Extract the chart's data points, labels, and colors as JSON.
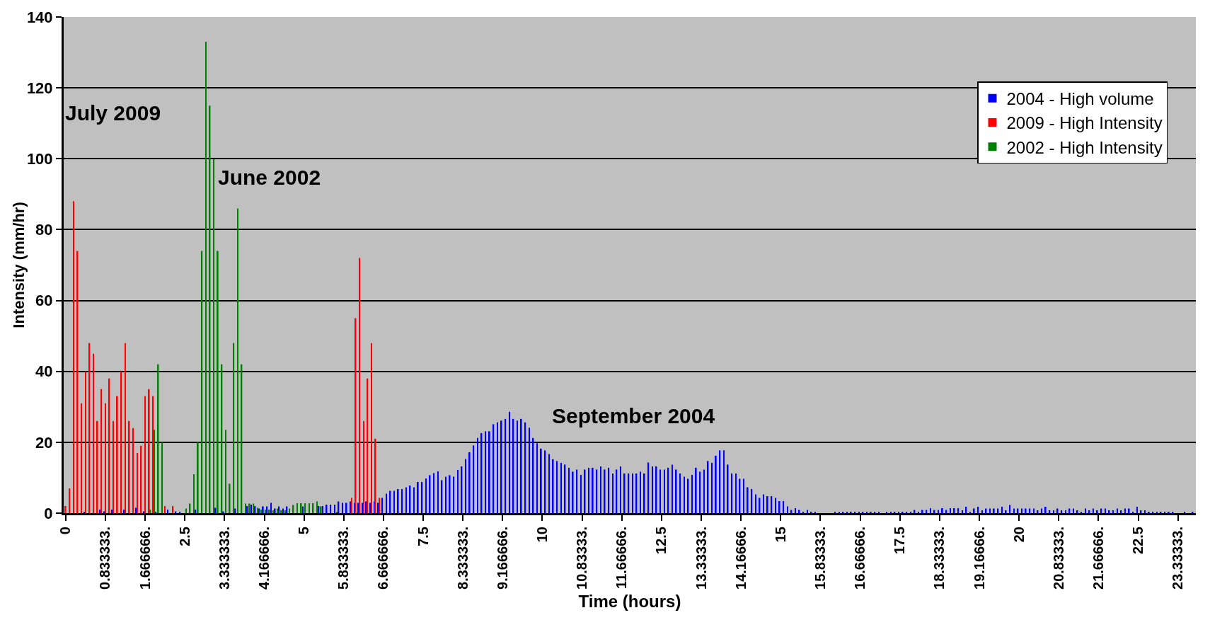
{
  "chart_data": {
    "type": "bar",
    "xlabel": "Time (hours)",
    "ylabel": "Intensity (mm/hr)",
    "categories": [
      "0",
      null,
      null,
      null,
      null,
      null,
      null,
      null,
      null,
      null,
      "0.833333.",
      null,
      null,
      null,
      null,
      null,
      null,
      null,
      null,
      null,
      "1.666666.",
      null,
      null,
      null,
      null,
      null,
      null,
      null,
      null,
      null,
      "2.5",
      null,
      null,
      null,
      null,
      null,
      null,
      null,
      null,
      null,
      "3.333333.",
      null,
      null,
      null,
      null,
      null,
      null,
      null,
      null,
      null,
      "4.166666.",
      null,
      null,
      null,
      null,
      null,
      null,
      null,
      null,
      null,
      "5",
      null,
      null,
      null,
      null,
      null,
      null,
      null,
      null,
      null,
      "5.833333.",
      null,
      null,
      null,
      null,
      null,
      null,
      null,
      null,
      null,
      "6.666666.",
      null,
      null,
      null,
      null,
      null,
      null,
      null,
      null,
      null,
      "7.5",
      null,
      null,
      null,
      null,
      null,
      null,
      null,
      null,
      null,
      "8.333333.",
      null,
      null,
      null,
      null,
      null,
      null,
      null,
      null,
      null,
      "9.166666.",
      null,
      null,
      null,
      null,
      null,
      null,
      null,
      null,
      null,
      "10",
      null,
      null,
      null,
      null,
      null,
      null,
      null,
      null,
      null,
      "10.83333.",
      null,
      null,
      null,
      null,
      null,
      null,
      null,
      null,
      null,
      "11.66666.",
      null,
      null,
      null,
      null,
      null,
      null,
      null,
      null,
      null,
      "12.5",
      null,
      null,
      null,
      null,
      null,
      null,
      null,
      null,
      null,
      "13.33333.",
      null,
      null,
      null,
      null,
      null,
      null,
      null,
      null,
      null,
      "14.16666.",
      null,
      null,
      null,
      null,
      null,
      null,
      null,
      null,
      null,
      "15",
      null,
      null,
      null,
      null,
      null,
      null,
      null,
      null,
      null,
      "15.83333.",
      null,
      null,
      null,
      null,
      null,
      null,
      null,
      null,
      null,
      "16.66666.",
      null,
      null,
      null,
      null,
      null,
      null,
      null,
      null,
      null,
      "17.5",
      null,
      null,
      null,
      null,
      null,
      null,
      null,
      null,
      null,
      "18.33333.",
      null,
      null,
      null,
      null,
      null,
      null,
      null,
      null,
      null,
      "19.16666.",
      null,
      null,
      null,
      null,
      null,
      null,
      null,
      null,
      null,
      "20",
      null,
      null,
      null,
      null,
      null,
      null,
      null,
      null,
      null,
      "20.83333.",
      null,
      null,
      null,
      null,
      null,
      null,
      null,
      null,
      null,
      "21.66666.",
      null,
      null,
      null,
      null,
      null,
      null,
      null,
      null,
      null,
      "22.5",
      null,
      null,
      null,
      null,
      null,
      null,
      null,
      null,
      null,
      "23.33333.",
      null,
      null,
      null,
      null
    ],
    "series": [
      {
        "name": "2004 - High volume",
        "color": "#0000ff",
        "values": [
          null,
          null,
          null,
          null,
          null,
          0.3,
          null,
          null,
          null,
          1,
          0.5,
          null,
          1,
          null,
          null,
          1,
          null,
          null,
          1.5,
          null,
          0.5,
          null,
          null,
          0.3,
          null,
          null,
          1,
          null,
          0.5,
          0.3,
          null,
          null,
          null,
          1,
          null,
          null,
          null,
          null,
          1.5,
          null,
          0.5,
          null,
          null,
          1.3,
          null,
          null,
          2,
          2.4,
          2,
          1.3,
          1.9,
          1.9,
          2.9,
          1.3,
          1.9,
          1.3,
          1.9,
          null,
          null,
          null,
          1.9,
          null,
          null,
          null,
          2,
          2,
          2.4,
          2.4,
          2.4,
          3.3,
          2.9,
          2.9,
          3.3,
          2.9,
          2.9,
          2.9,
          3.3,
          2.9,
          3.3,
          2.9,
          4.3,
          5.5,
          6.3,
          6.3,
          6.8,
          6.8,
          7.3,
          7.8,
          7.3,
          8.8,
          8.8,
          9.8,
          10.7,
          11.3,
          11.8,
          9.3,
          10.3,
          10.7,
          10.3,
          12.2,
          13.2,
          15.3,
          17.2,
          19.1,
          21.2,
          22.6,
          23.1,
          23.1,
          25.1,
          25.6,
          26.1,
          26.6,
          28.6,
          26.6,
          26.1,
          26.6,
          25.6,
          24.1,
          21.2,
          19.7,
          18.2,
          17.7,
          16.7,
          15.2,
          14.7,
          14.2,
          13.7,
          12.8,
          11.7,
          12.3,
          10.8,
          12.3,
          12.8,
          12.8,
          12.3,
          13.2,
          12.3,
          12.8,
          11.2,
          12.3,
          13.2,
          11.2,
          11.2,
          11.2,
          11.2,
          11.7,
          11.2,
          14.3,
          13.2,
          13.2,
          12.3,
          12.3,
          12.8,
          13.7,
          12.3,
          11.2,
          10.3,
          9.7,
          10.8,
          12.8,
          11.7,
          12.3,
          14.7,
          14.2,
          16.2,
          17.7,
          17.7,
          13.7,
          11.2,
          11.2,
          9.7,
          9.7,
          7.3,
          6.8,
          5.3,
          4.3,
          5.3,
          4.8,
          4.8,
          4.3,
          3.4,
          3.4,
          1.9,
          0.9,
          1.4,
          0.9,
          0.4,
          0.9,
          0.4,
          0.4,
          null,
          null,
          null,
          null,
          0.4,
          0.4,
          0.4,
          0.4,
          0.4,
          0.4,
          0.4,
          0.4,
          0.4,
          0.4,
          0.4,
          0.4,
          null,
          0.4,
          0.4,
          0.4,
          0.4,
          0.4,
          0.4,
          0.4,
          0.9,
          0.4,
          0.9,
          0.9,
          1.4,
          0.9,
          0.9,
          1.4,
          0.9,
          1.4,
          1.4,
          1.4,
          0.8,
          1.8,
          0.3,
          1.3,
          1.8,
          0.8,
          1.3,
          1.3,
          1.3,
          1.3,
          1.8,
          0.8,
          2.3,
          1.3,
          1.3,
          1.3,
          1.3,
          1.3,
          1.3,
          0.8,
          1.3,
          1.8,
          0.8,
          0.8,
          1.3,
          0.8,
          0.8,
          1.3,
          1.3,
          0.8,
          0.3,
          1.3,
          0.8,
          1.3,
          0.8,
          1.3,
          1.3,
          0.8,
          0.8,
          1.3,
          0.8,
          1.3,
          1.3,
          0.3,
          1.8,
          0.8,
          0.8,
          0.3,
          0.3,
          0.3,
          0.3,
          0.3,
          0.3,
          0.3,
          null,
          null,
          0.3,
          null,
          0.3
        ]
      },
      {
        "name": "2009 - High Intensity",
        "color": "#ff0000",
        "values": [
          2,
          7,
          88,
          74,
          31,
          40,
          48,
          45,
          26,
          35,
          31,
          38,
          26,
          33,
          40,
          48,
          26,
          24,
          17,
          19,
          33,
          35,
          33,
          null,
          null,
          2,
          null,
          2,
          null,
          null,
          null,
          null,
          null,
          null,
          null,
          null,
          null,
          null,
          null,
          null,
          null,
          null,
          null,
          null,
          null,
          null,
          null,
          null,
          null,
          null,
          null,
          null,
          null,
          null,
          null,
          null,
          null,
          null,
          null,
          null,
          null,
          null,
          null,
          null,
          null,
          null,
          null,
          null,
          null,
          null,
          null,
          null,
          4.3,
          55,
          72,
          26,
          38,
          48,
          21,
          4.3,
          null,
          null,
          null,
          null,
          null,
          null,
          null,
          null,
          null,
          null,
          null,
          null,
          null,
          null,
          null,
          null,
          null,
          null,
          null,
          null,
          null,
          null,
          null,
          null,
          null,
          null,
          null,
          null,
          null,
          null,
          null,
          null,
          null,
          null,
          null,
          null,
          null,
          null,
          null,
          null,
          null,
          null,
          null,
          null,
          null,
          null,
          null,
          null,
          null,
          null,
          null,
          null,
          null,
          null,
          null,
          null,
          null,
          null,
          null,
          null,
          null,
          null,
          null,
          null,
          null,
          null,
          null,
          null,
          null,
          null,
          null,
          null,
          null,
          null,
          null,
          null,
          null,
          null,
          null,
          null,
          null,
          null,
          null,
          null,
          null,
          null,
          null,
          null,
          null,
          null,
          null,
          null,
          null,
          null,
          null,
          null,
          null,
          null,
          null,
          null,
          null,
          null,
          null,
          null,
          null,
          null,
          null,
          null,
          null,
          null,
          null,
          null,
          null,
          null,
          null,
          null,
          null,
          null,
          null,
          null,
          null,
          null,
          null,
          null,
          null,
          null,
          null,
          null,
          null,
          null,
          null,
          null,
          null,
          null,
          null,
          null,
          null,
          null,
          null,
          null,
          null,
          null,
          null,
          null,
          null,
          null,
          null,
          null,
          null,
          null,
          null,
          null,
          null,
          null,
          null,
          null,
          null,
          null,
          null,
          null,
          null,
          null,
          null,
          null,
          null,
          null,
          null,
          null,
          null,
          null,
          null,
          null,
          null,
          null,
          null,
          null,
          null,
          null,
          null,
          null,
          null,
          null,
          null,
          null,
          null,
          null,
          null,
          null,
          null,
          null,
          null,
          null,
          null,
          null,
          null,
          null,
          null,
          null,
          null,
          null,
          null,
          null,
          null,
          null,
          null
        ]
      },
      {
        "name": "2002 - High Intensity",
        "color": "#008000",
        "values": [
          null,
          null,
          null,
          null,
          null,
          null,
          null,
          null,
          null,
          null,
          null,
          null,
          null,
          null,
          null,
          null,
          null,
          null,
          null,
          null,
          null,
          1,
          23.5,
          42,
          20,
          null,
          null,
          null,
          null,
          null,
          1.3,
          2.7,
          11,
          20,
          74,
          133,
          115,
          100,
          74,
          42,
          23.5,
          8.3,
          48,
          86,
          42,
          2.7,
          2.7,
          2.7,
          1.5,
          1,
          1,
          1,
          0.8,
          1.3,
          0.8,
          0.8,
          1.3,
          2.3,
          2.8,
          2.8,
          2.8,
          2.8,
          2.8,
          3.3,
          1.9,
          null,
          null,
          null,
          0.3,
          null,
          null,
          null,
          null,
          null,
          null,
          null,
          null,
          null,
          null,
          null,
          null,
          null,
          null,
          null,
          null,
          null,
          null,
          null,
          null,
          null,
          null,
          null,
          null,
          null,
          null,
          null,
          null,
          null,
          null,
          null,
          null,
          null,
          null,
          null,
          null,
          null,
          null,
          null,
          null,
          null,
          null,
          null,
          null,
          null,
          null,
          null,
          null,
          null,
          null,
          null,
          null,
          null,
          null,
          null,
          null,
          null,
          null,
          null,
          null,
          null,
          null,
          null,
          null,
          null,
          null,
          null,
          null,
          null,
          null,
          null,
          null,
          null,
          null,
          null,
          null,
          null,
          null,
          null,
          null,
          null,
          null,
          null,
          null,
          null,
          null,
          null,
          null,
          null,
          null,
          null,
          null,
          null,
          null,
          null,
          null,
          null,
          null,
          null,
          null,
          null,
          null,
          null,
          null,
          null,
          null,
          null,
          null,
          null,
          null,
          null,
          null,
          null,
          null,
          null,
          null,
          null,
          null,
          null,
          null,
          null,
          null,
          null,
          null,
          null,
          null,
          null,
          null,
          null,
          null,
          null,
          null,
          null,
          null,
          null,
          null,
          null,
          null,
          null,
          null,
          null,
          null,
          null,
          null,
          null,
          null,
          null,
          null,
          null,
          null,
          null,
          null,
          null,
          null,
          null,
          null,
          null,
          null,
          null,
          null,
          null,
          null,
          null,
          null,
          null,
          null,
          null,
          null,
          null,
          null,
          null,
          null,
          null,
          null,
          null,
          null,
          null,
          null,
          null,
          null,
          null,
          null,
          null,
          null,
          null,
          null,
          null,
          null,
          null,
          null,
          null,
          null,
          null,
          null,
          null,
          null,
          null,
          null,
          null,
          null,
          null,
          null,
          null,
          null,
          null,
          null,
          null,
          null,
          null,
          null,
          null,
          null,
          null,
          null,
          null,
          null
        ]
      }
    ],
    "ylim": [
      0,
      140
    ],
    "yticks": [
      0,
      20,
      40,
      60,
      80,
      100,
      120,
      140
    ],
    "grid": "y",
    "legend": "top right",
    "annotations": [
      "July 2009",
      "June 2002",
      "September 2004"
    ]
  }
}
